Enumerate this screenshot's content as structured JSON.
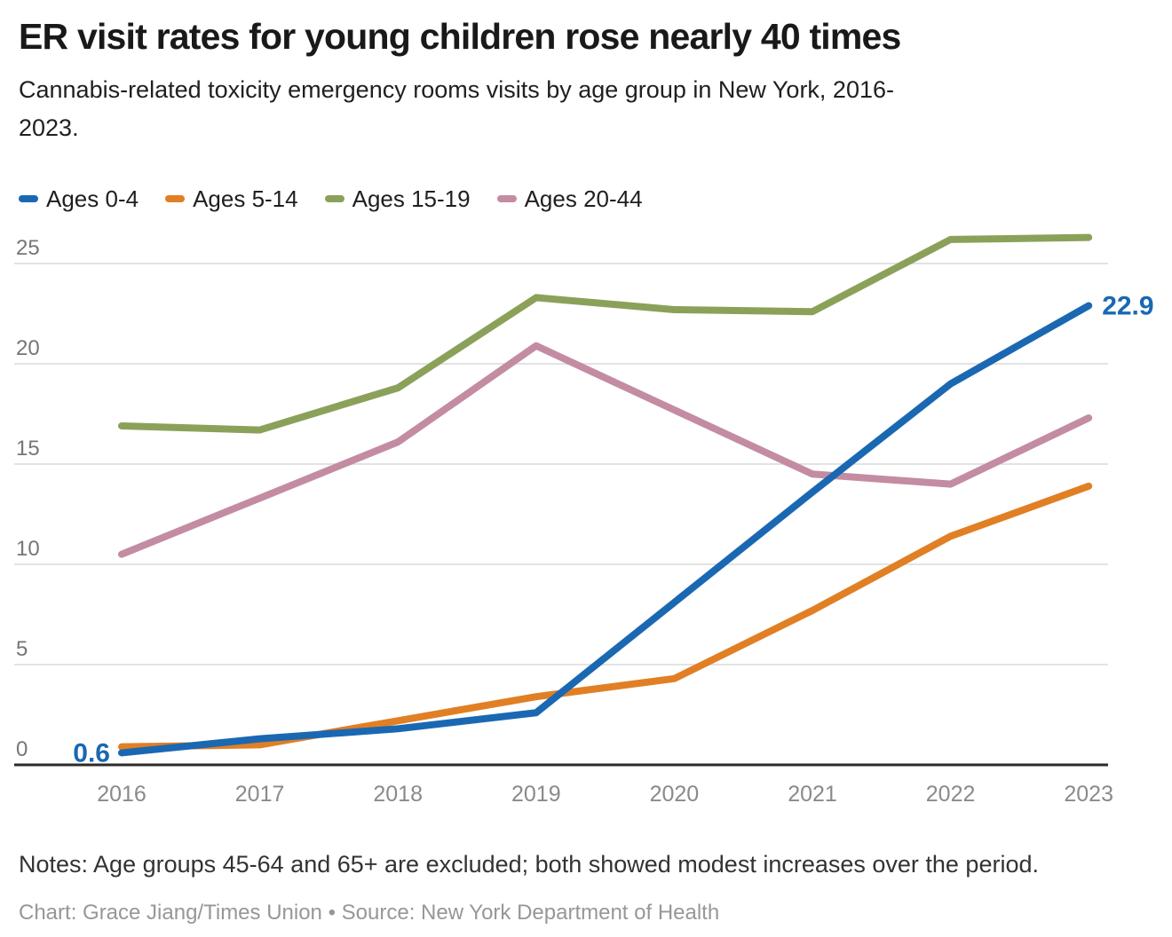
{
  "header": {
    "title": "ER visit rates for young children rose nearly 40 times",
    "subtitle_lines": [
      "Cannabis-related toxicity emergency rooms visits by age group in New York, 2016-",
      "2023."
    ]
  },
  "chart_data": {
    "type": "line",
    "title": "ER visit rates for young children rose nearly 40 times",
    "xlabel": "",
    "ylabel": "",
    "x": [
      2016,
      2017,
      2018,
      2019,
      2020,
      2021,
      2022,
      2023
    ],
    "series": [
      {
        "name": "Ages 0-4",
        "color": "#1a68b2",
        "values": [
          0.6,
          1.3,
          1.8,
          2.6,
          8.1,
          13.6,
          19.0,
          22.9
        ]
      },
      {
        "name": "Ages 5-14",
        "color": "#e17f24",
        "values": [
          0.9,
          1.0,
          2.2,
          3.4,
          4.3,
          7.7,
          11.4,
          13.9
        ]
      },
      {
        "name": "Ages 15-19",
        "color": "#8ba15a",
        "values": [
          16.9,
          16.7,
          18.8,
          23.3,
          22.7,
          22.6,
          26.2,
          26.3
        ]
      },
      {
        "name": "Ages 20-44",
        "color": "#c38ca2",
        "values": [
          10.5,
          13.3,
          16.1,
          20.9,
          17.7,
          14.5,
          14.0,
          17.3
        ]
      }
    ],
    "ylim": [
      0,
      26.5
    ],
    "yticks": [
      0,
      5,
      10,
      15,
      20,
      25
    ],
    "grid": true,
    "legend_position": "top",
    "annotations": [
      {
        "text": "0.6",
        "x": 2016,
        "value": 0.6,
        "side": "left",
        "color": "#1a68b2"
      },
      {
        "text": "22.9",
        "x": 2023,
        "value": 22.9,
        "side": "right",
        "color": "#1a68b2"
      }
    ]
  },
  "footer": {
    "notes": "Notes: Age groups 45-64 and 65+ are excluded; both showed modest increases over the period.",
    "credit": "Chart: Grace Jiang/Times Union • Source: New York Department of Health"
  }
}
